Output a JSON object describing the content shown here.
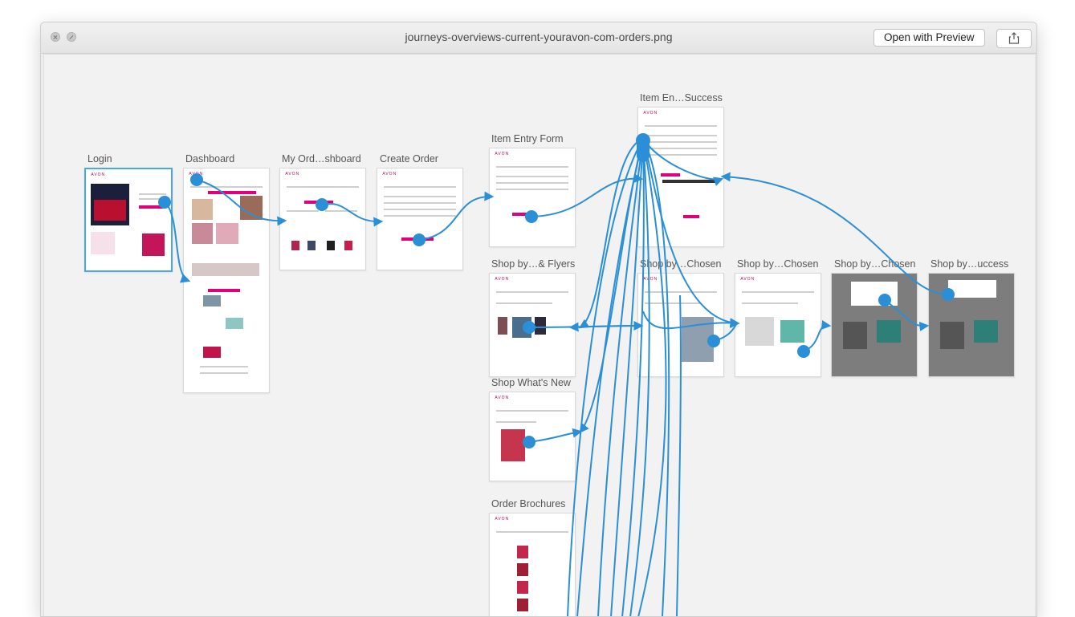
{
  "window": {
    "title": "journeys-overviews-current-youravon-com-orders.png",
    "open_with_preview": "Open with Preview",
    "share_icon": "share-icon"
  },
  "screens": {
    "login": "Login",
    "dashboard": "Dashboard",
    "my_orders": "My Ord…shboard",
    "create_order": "Create Order",
    "item_entry_form": "Item Entry Form",
    "item_entry_success": "Item En…Success",
    "shop_flyers": "Shop by…& Flyers",
    "shop_chosen_1": "Shop by…Chosen",
    "shop_chosen_2": "Shop by…Chosen",
    "shop_chosen_3": "Shop by…Chosen",
    "shop_success": "Shop by…uccess",
    "shop_whats_new": "Shop What's New",
    "order_brochures": "Order Brochures"
  },
  "colors": {
    "flow": "#2a8fd6",
    "accent": "#e0007a",
    "selection": "#4aa8e8"
  }
}
